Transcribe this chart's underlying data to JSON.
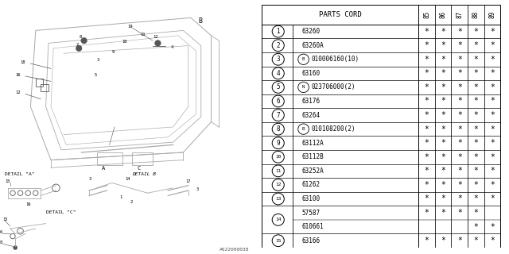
{
  "bg_color": "#ffffff",
  "watermark": "A622000038",
  "table": {
    "header_col": "PARTS CORD",
    "year_cols": [
      "85",
      "86",
      "87",
      "88",
      "89"
    ],
    "rows": [
      {
        "num": "1",
        "prefix": "",
        "prefix_type": "",
        "code": "63260",
        "marks": [
          true,
          true,
          true,
          true,
          true
        ]
      },
      {
        "num": "2",
        "prefix": "",
        "prefix_type": "",
        "code": "63260A",
        "marks": [
          true,
          true,
          true,
          true,
          true
        ]
      },
      {
        "num": "3",
        "prefix": "B",
        "prefix_type": "B",
        "code": "010006160(10)",
        "marks": [
          true,
          true,
          true,
          true,
          true
        ]
      },
      {
        "num": "4",
        "prefix": "",
        "prefix_type": "",
        "code": "63160",
        "marks": [
          true,
          true,
          true,
          true,
          true
        ]
      },
      {
        "num": "5",
        "prefix": "N",
        "prefix_type": "N",
        "code": "023706000(2)",
        "marks": [
          true,
          true,
          true,
          true,
          true
        ]
      },
      {
        "num": "6",
        "prefix": "",
        "prefix_type": "",
        "code": "63176",
        "marks": [
          true,
          true,
          true,
          true,
          true
        ]
      },
      {
        "num": "7",
        "prefix": "",
        "prefix_type": "",
        "code": "63264",
        "marks": [
          true,
          true,
          true,
          true,
          true
        ]
      },
      {
        "num": "8",
        "prefix": "B",
        "prefix_type": "B",
        "code": "010108200(2)",
        "marks": [
          true,
          true,
          true,
          true,
          true
        ]
      },
      {
        "num": "9",
        "prefix": "",
        "prefix_type": "",
        "code": "63112A",
        "marks": [
          true,
          true,
          true,
          true,
          true
        ]
      },
      {
        "num": "10",
        "prefix": "",
        "prefix_type": "",
        "code": "63112B",
        "marks": [
          true,
          true,
          true,
          true,
          true
        ]
      },
      {
        "num": "11",
        "prefix": "",
        "prefix_type": "",
        "code": "63252A",
        "marks": [
          true,
          true,
          true,
          true,
          true
        ]
      },
      {
        "num": "12",
        "prefix": "",
        "prefix_type": "",
        "code": "61262",
        "marks": [
          true,
          true,
          true,
          true,
          true
        ]
      },
      {
        "num": "13",
        "prefix": "",
        "prefix_type": "",
        "code": "63100",
        "marks": [
          true,
          true,
          true,
          true,
          true
        ]
      },
      {
        "num": "14a",
        "prefix": "",
        "prefix_type": "",
        "code": "57587",
        "marks": [
          true,
          true,
          true,
          true,
          false
        ]
      },
      {
        "num": "14b",
        "prefix": "",
        "prefix_type": "",
        "code": "610661",
        "marks": [
          false,
          false,
          false,
          true,
          true
        ]
      },
      {
        "num": "15",
        "prefix": "",
        "prefix_type": "",
        "code": "63166",
        "marks": [
          true,
          true,
          true,
          true,
          true
        ]
      }
    ]
  },
  "diagram": {
    "color": "#aaaaaa",
    "dark": "#555555",
    "lw": 0.6
  }
}
